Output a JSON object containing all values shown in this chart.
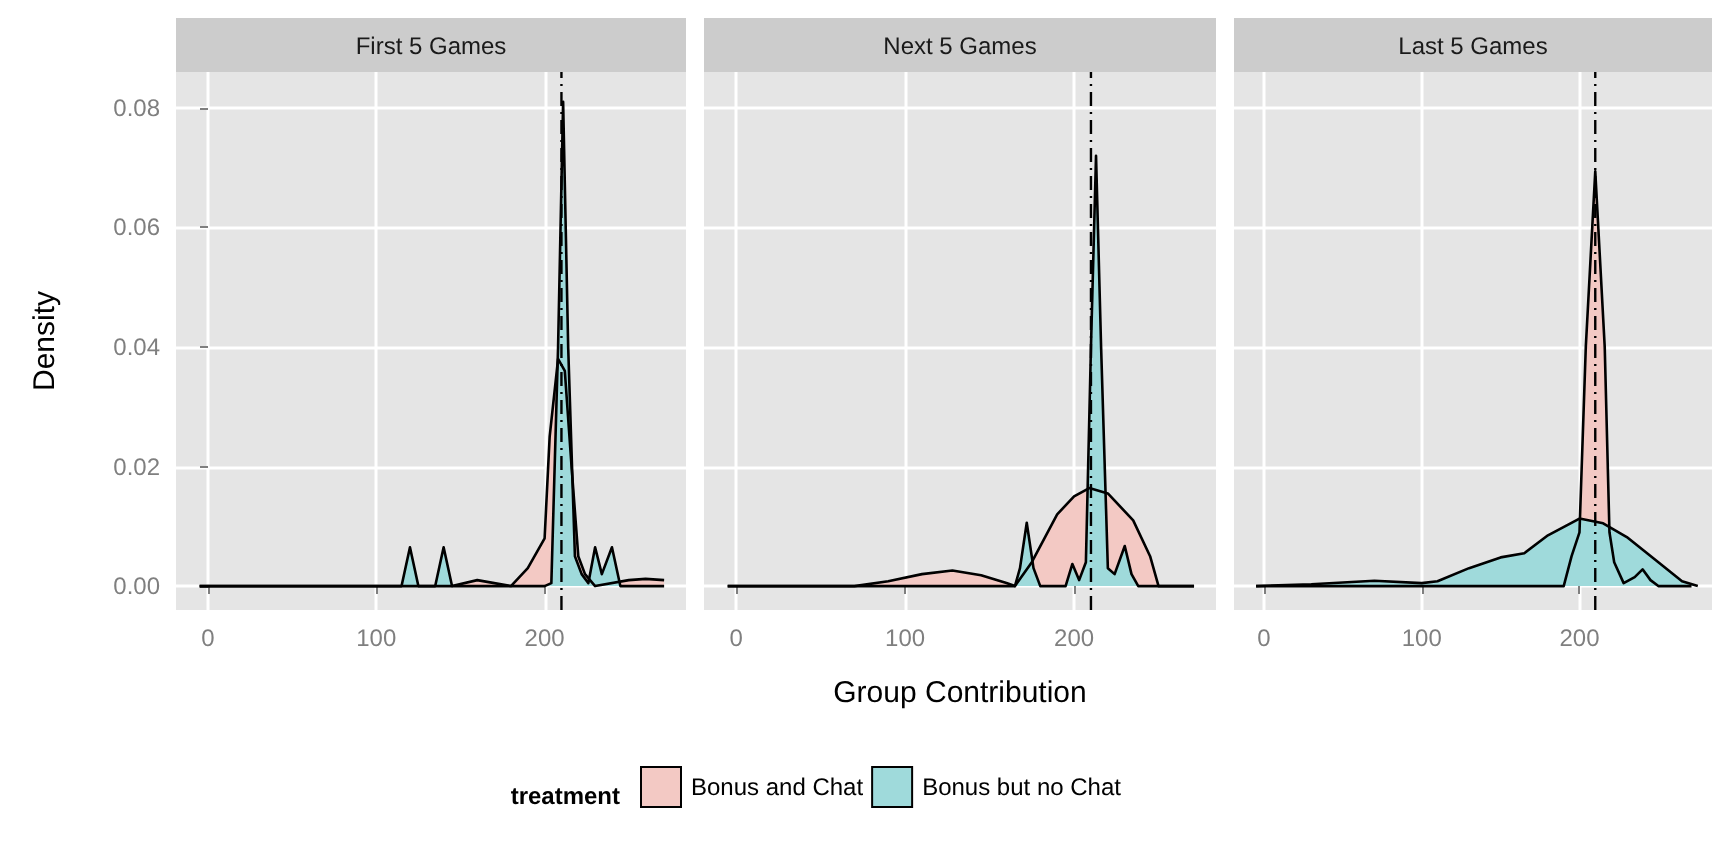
{
  "chart_data": [
    {
      "type": "area",
      "title": "First 5 Games",
      "ylabel": "Density",
      "xlim": [
        -19,
        284
      ],
      "xticks": [
        0,
        100,
        200
      ],
      "ylim": [
        -0.004,
        0.086
      ],
      "yticks": [
        {
          "value": 0,
          "label": "0.00"
        },
        {
          "value": 0.02,
          "label": "0.02"
        },
        {
          "value": 0.04,
          "label": "0.04"
        },
        {
          "value": 0.06,
          "label": "0.06"
        },
        {
          "value": 0.08,
          "label": "0.08"
        }
      ],
      "grid": true,
      "legend": false,
      "marker": "none",
      "series": [
        {
          "color": "#f3c9c4",
          "x": [
            -5,
            145,
            160,
            180,
            190,
            200,
            203,
            208,
            212,
            216,
            220,
            224,
            230,
            250,
            260,
            271
          ],
          "values": [
            0,
            0,
            0.001,
            0,
            0.003,
            0.008,
            0.025,
            0.038,
            0.036,
            0.02,
            0.005,
            0.002,
            0,
            0.001,
            0.0012,
            0.001
          ]
        },
        {
          "color": "#9fdadb",
          "x": [
            -5,
            112,
            115,
            120,
            125,
            135,
            140,
            145,
            200,
            204,
            208,
            211,
            214,
            218,
            222,
            226,
            230,
            234,
            240,
            245,
            271
          ],
          "values": [
            0,
            0,
            0,
            0.0065,
            0,
            0,
            0.0065,
            0,
            0,
            0.0005,
            0.04,
            0.081,
            0.04,
            0.005,
            0.002,
            0.0005,
            0.0065,
            0.002,
            0.0065,
            0,
            0
          ]
        }
      ],
      "ref_lines": [
        {
          "axis": "x",
          "value": 210,
          "line_style": "dashed"
        }
      ]
    },
    {
      "type": "area",
      "title": "Next 5 Games",
      "xlabel": "Group Contribution",
      "legend_title": "treatment",
      "xlim": [
        -19,
        284
      ],
      "xticks": [
        0,
        100,
        200
      ],
      "ylim": [
        -0.004,
        0.086
      ],
      "yticks": [
        0,
        0.02,
        0.04,
        0.06,
        0.08
      ],
      "grid": true,
      "legend": "bottom",
      "marker": "none",
      "tick_labels": "x",
      "series": [
        {
          "name": "Bonus and Chat",
          "color": "#f3c9c4",
          "x": [
            -5,
            70,
            90,
            110,
            128,
            145,
            160,
            165,
            175,
            190,
            200,
            209,
            220,
            235,
            245,
            250,
            271
          ],
          "values": [
            0,
            0,
            0.0008,
            0.002,
            0.0026,
            0.0018,
            0.0005,
            0,
            0.004,
            0.012,
            0.015,
            0.0164,
            0.0155,
            0.011,
            0.005,
            0,
            0
          ]
        },
        {
          "name": "Bonus but no Chat",
          "color": "#9fdadb",
          "x": [
            -5,
            165,
            168,
            172,
            176,
            180,
            195,
            199,
            203,
            207,
            210,
            213,
            216,
            220,
            224,
            230,
            234,
            238,
            271
          ],
          "values": [
            0,
            0,
            0.003,
            0.0106,
            0.003,
            0,
            0,
            0.0037,
            0.001,
            0.004,
            0.04,
            0.072,
            0.04,
            0.003,
            0.002,
            0.0067,
            0.002,
            0,
            0
          ]
        }
      ],
      "ref_lines": [
        {
          "axis": "x",
          "value": 210,
          "line_style": "dashed"
        }
      ]
    },
    {
      "type": "area",
      "title": "Last 5 Games",
      "xlim": [
        -19,
        284
      ],
      "xticks": [
        0,
        100,
        200
      ],
      "ylim": [
        -0.004,
        0.086
      ],
      "yticks": [
        0,
        0.02,
        0.04,
        0.06,
        0.08
      ],
      "grid": true,
      "legend": false,
      "marker": "none",
      "tick_labels": "x",
      "series": [
        {
          "color": "#f3c9c4",
          "x": [
            -5,
            190,
            195,
            200,
            204,
            210,
            216,
            219,
            222,
            228,
            235,
            240,
            245,
            250,
            271
          ],
          "values": [
            0,
            0,
            0.005,
            0.009,
            0.04,
            0.0694,
            0.04,
            0.009,
            0.004,
            0.0005,
            0.0015,
            0.0028,
            0.001,
            0,
            0
          ]
        },
        {
          "color": "#9fdadb",
          "x": [
            -5,
            30,
            70,
            100,
            110,
            130,
            150,
            165,
            180,
            200,
            215,
            230,
            250,
            265,
            275
          ],
          "values": [
            0,
            0.0003,
            0.0009,
            0.0005,
            0.0008,
            0.003,
            0.0048,
            0.0055,
            0.0085,
            0.0113,
            0.0105,
            0.0082,
            0.004,
            0.0008,
            0
          ]
        }
      ],
      "ref_lines": [
        {
          "axis": "x",
          "value": 210,
          "line_style": "dashed"
        }
      ]
    }
  ]
}
